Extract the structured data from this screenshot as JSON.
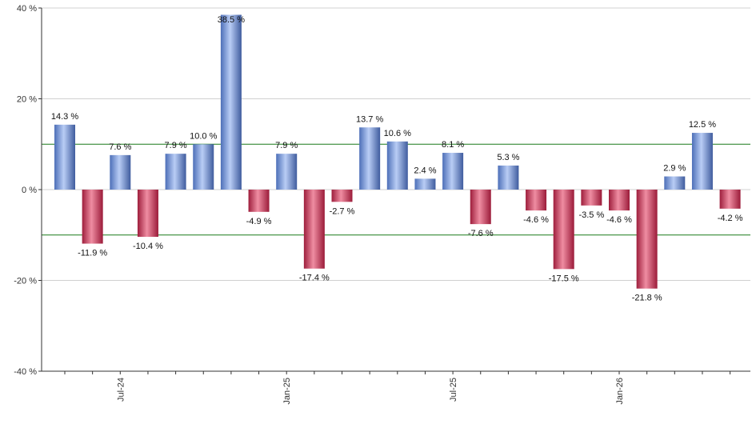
{
  "chart_data": {
    "type": "bar",
    "title": "",
    "xlabel": "",
    "ylabel": "",
    "ylim": [
      -40,
      40
    ],
    "y_ticks": [
      {
        "value": 40,
        "label": "40 %"
      },
      {
        "value": 20,
        "label": "20 %"
      },
      {
        "value": 0,
        "label": "0 %"
      },
      {
        "value": -20,
        "label": "-20 %"
      },
      {
        "value": -40,
        "label": "-40 %"
      }
    ],
    "x_tick_labels": [
      {
        "label": "Jul-24",
        "index": 2
      },
      {
        "label": "Jan-25",
        "index": 8
      },
      {
        "label": "Jul-25",
        "index": 14
      },
      {
        "label": "Jan-26",
        "index": 20
      }
    ],
    "values": [
      14.3,
      -11.9,
      7.6,
      -10.4,
      7.9,
      10.0,
      38.5,
      -4.9,
      7.9,
      -17.4,
      -2.7,
      13.7,
      10.6,
      2.4,
      8.1,
      -7.6,
      5.3,
      -4.6,
      -17.5,
      -3.5,
      -4.6,
      -21.8,
      2.9,
      12.5,
      -4.2
    ],
    "value_labels": [
      "14.3 %",
      "-11.9 %",
      "7.6 %",
      "-10.4 %",
      "7.9 %",
      "10.0 %",
      "38.5 %",
      "-4.9 %",
      "7.9 %",
      "-17.4 %",
      "-2.7 %",
      "13.7 %",
      "10.6 %",
      "2.4 %",
      "8.1 %",
      "-7.6 %",
      "5.3 %",
      "-4.6 %",
      "-17.5 %",
      "-3.5 %",
      "-4.6 %",
      "-21.8 %",
      "2.9 %",
      "12.5 %",
      "-4.2 %"
    ],
    "reference_lines": [
      10,
      -10
    ],
    "grid": true,
    "colors": {
      "positive": "#7f9fe0",
      "negative": "#c8385a",
      "reference_line": "#1a7a1a",
      "grid": "#d0d0d0",
      "axis": "#333333"
    }
  }
}
